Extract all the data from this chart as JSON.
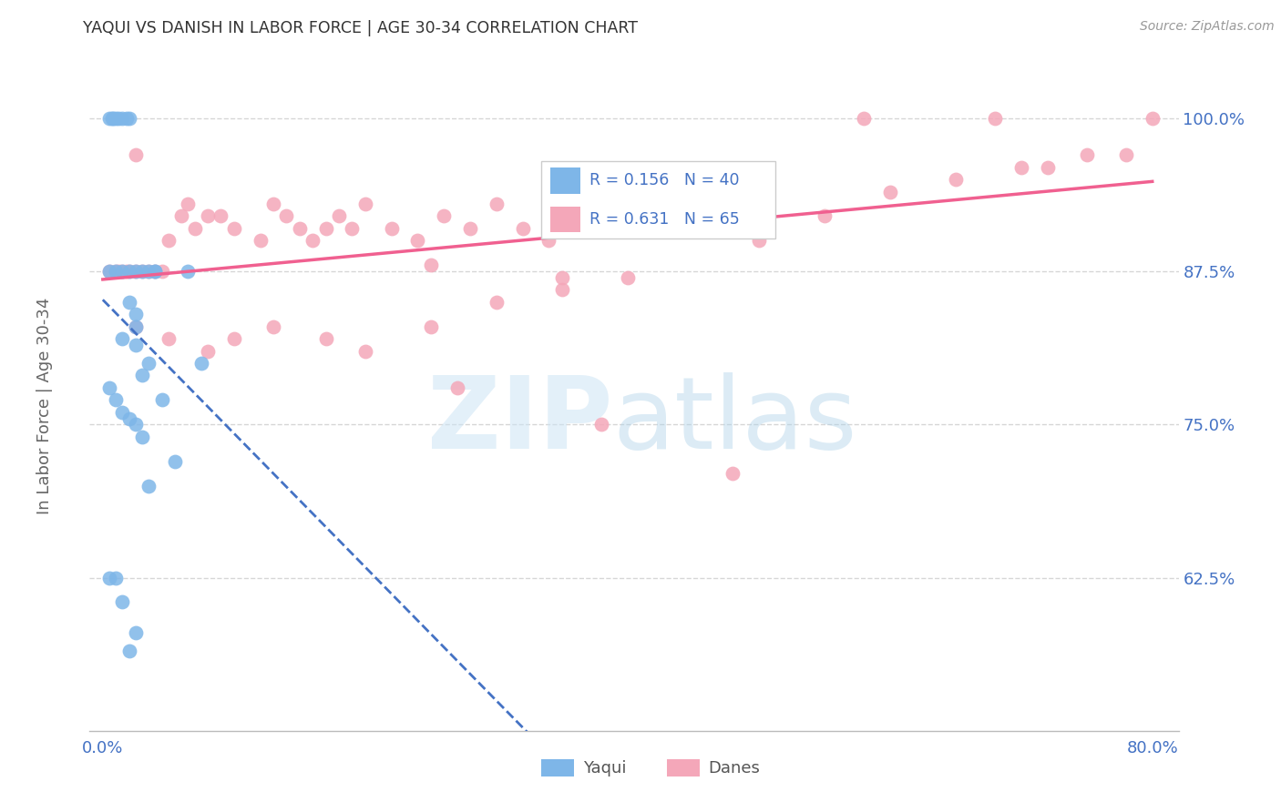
{
  "title": "YAQUI VS DANISH IN LABOR FORCE | AGE 30-34 CORRELATION CHART",
  "source": "Source: ZipAtlas.com",
  "ylabel": "In Labor Force | Age 30-34",
  "xlim": [
    -0.01,
    0.82
  ],
  "ylim": [
    0.5,
    1.05
  ],
  "ytick_positions": [
    0.625,
    0.75,
    0.875,
    1.0
  ],
  "ytick_labels": [
    "62.5%",
    "75.0%",
    "87.5%",
    "100.0%"
  ],
  "yaqui_R": 0.156,
  "yaqui_N": 40,
  "danes_R": 0.631,
  "danes_N": 65,
  "yaqui_color": "#7eb6e8",
  "danes_color": "#f4a7b9",
  "yaqui_line_color": "#4472c4",
  "danes_line_color": "#f06090",
  "background_color": "#ffffff",
  "grid_color": "#cccccc",
  "title_color": "#333333",
  "axis_color": "#4472c4"
}
